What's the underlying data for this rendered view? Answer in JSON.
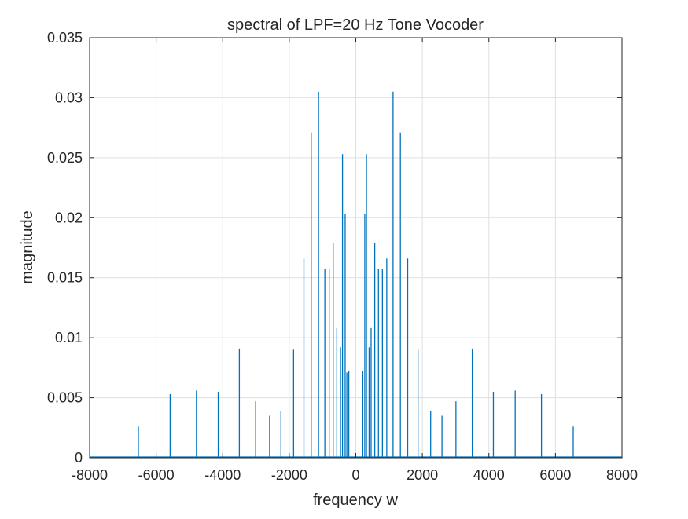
{
  "chart_data": {
    "type": "line",
    "title": "spectral of LPF=20 Hz Tone Vocoder",
    "xlabel": "frequency w",
    "ylabel": "magnitude",
    "xlim": [
      -8000,
      8000
    ],
    "ylim": [
      0,
      0.035
    ],
    "xticks": [
      -8000,
      -6000,
      -4000,
      -2000,
      0,
      2000,
      4000,
      6000,
      8000
    ],
    "xtick_labels": [
      "-8000",
      "-6000",
      "-4000",
      "-2000",
      "0",
      "2000",
      "4000",
      "6000",
      "8000"
    ],
    "yticks": [
      0,
      0.005,
      0.01,
      0.015,
      0.02,
      0.025,
      0.03,
      0.035
    ],
    "ytick_labels": [
      "0",
      "0.005",
      "0.01",
      "0.015",
      "0.02",
      "0.025",
      "0.03",
      "0.035"
    ],
    "grid": true,
    "line_color": "#0072BD",
    "series": [
      {
        "x": [
          -6535,
          -5580,
          -4790,
          -4135,
          -3500,
          -3010,
          -2590,
          -2250,
          -1870,
          -1560,
          -1340,
          -1120,
          -930,
          -800,
          -680,
          -570,
          -460,
          -400,
          -320,
          -270,
          -210,
          210,
          270,
          320,
          400,
          460,
          570,
          680,
          800,
          930,
          1120,
          1340,
          1560,
          1870,
          2250,
          2590,
          3010,
          3500,
          4135,
          4790,
          5580,
          6535
        ],
        "y": [
          0.0026,
          0.0053,
          0.0056,
          0.0055,
          0.0091,
          0.0047,
          0.0035,
          0.0039,
          0.009,
          0.0166,
          0.0271,
          0.0305,
          0.0157,
          0.0157,
          0.0179,
          0.0108,
          0.0092,
          0.0253,
          0.0203,
          0.0071,
          0.0072,
          0.0072,
          0.0203,
          0.0253,
          0.0092,
          0.0108,
          0.0179,
          0.0157,
          0.0157,
          0.0166,
          0.0305,
          0.0271,
          0.0166,
          0.009,
          0.0039,
          0.0035,
          0.0047,
          0.0091,
          0.0055,
          0.0056,
          0.0053,
          0.0026
        ]
      }
    ]
  }
}
